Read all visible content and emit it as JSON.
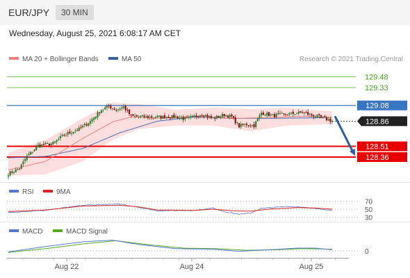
{
  "header": {
    "pair": "EUR/JPY",
    "timeframe": "30 MIN",
    "datetime": "Wednesday, August 25, 2021 6:08:17 AM CET"
  },
  "legend": {
    "ma20": "MA 20 + Bollinger Bands",
    "ma50": "MA 50",
    "credit": "Research © 2021 Trading Central",
    "rsi": "RSI",
    "rsi_ma": "9MA",
    "macd": "MACD",
    "macd_signal": "MACD Signal"
  },
  "colors": {
    "up": "#2e7d32",
    "down": "#8e1010",
    "ma20": "#f08080",
    "bollinger": "#fbd3d3",
    "ma50": "#4a6fb5",
    "resistance": "#7cbf5a",
    "pivot": "#3a75c4",
    "support": "#e60000",
    "arrow": "#2a5da8",
    "rsi": "#5577cc",
    "rsi_ma": "#dd2222",
    "macd": "#5577cc",
    "macd_signal": "#55aa22"
  },
  "chart_data": [
    {
      "type": "candlestick",
      "title": "EUR/JPY",
      "x_ticks": [
        "Aug 22",
        "Aug 24",
        "Aug 25"
      ],
      "ylim": [
        128.05,
        129.63
      ],
      "levels": [
        {
          "label": "129.48",
          "value": 129.48,
          "kind": "resistance"
        },
        {
          "label": "129.33",
          "value": 129.33,
          "kind": "resistance"
        },
        {
          "label": "129.08",
          "value": 129.08,
          "kind": "pivot"
        },
        {
          "label": "128.86",
          "value": 128.86,
          "kind": "last"
        },
        {
          "label": "128.51",
          "value": 128.51,
          "kind": "support"
        },
        {
          "label": "128.36",
          "value": 128.36,
          "kind": "support"
        }
      ],
      "forecast": {
        "from": 128.93,
        "to": 128.38
      },
      "close_anchors": [
        [
          0,
          128.13
        ],
        [
          6,
          128.2
        ],
        [
          10,
          128.37
        ],
        [
          16,
          128.52
        ],
        [
          24,
          128.55
        ],
        [
          30,
          128.67
        ],
        [
          38,
          128.75
        ],
        [
          44,
          128.86
        ],
        [
          50,
          129.02
        ],
        [
          54,
          129.07
        ],
        [
          58,
          129.02
        ],
        [
          62,
          129.06
        ],
        [
          66,
          128.93
        ],
        [
          74,
          128.92
        ],
        [
          82,
          128.92
        ],
        [
          90,
          128.92
        ],
        [
          96,
          128.89
        ],
        [
          104,
          128.96
        ],
        [
          110,
          128.9
        ],
        [
          116,
          128.95
        ],
        [
          120,
          128.92
        ],
        [
          124,
          128.79
        ],
        [
          128,
          128.82
        ],
        [
          132,
          128.8
        ],
        [
          136,
          128.98
        ],
        [
          142,
          128.94
        ],
        [
          150,
          128.96
        ],
        [
          158,
          128.98
        ],
        [
          164,
          128.94
        ],
        [
          170,
          128.9
        ],
        [
          174,
          128.86
        ]
      ],
      "ma20_anchors": [
        [
          0,
          128.18
        ],
        [
          20,
          128.3
        ],
        [
          40,
          128.62
        ],
        [
          56,
          128.85
        ],
        [
          66,
          128.92
        ],
        [
          80,
          128.9
        ],
        [
          100,
          128.93
        ],
        [
          120,
          128.9
        ],
        [
          140,
          128.91
        ],
        [
          160,
          128.93
        ],
        [
          174,
          128.91
        ]
      ],
      "ma50_anchors": [
        [
          0,
          128.35
        ],
        [
          20,
          128.37
        ],
        [
          40,
          128.48
        ],
        [
          60,
          128.7
        ],
        [
          80,
          128.86
        ],
        [
          100,
          128.92
        ],
        [
          120,
          128.9
        ],
        [
          140,
          128.9
        ],
        [
          174,
          128.91
        ]
      ],
      "bb_upper_anchors": [
        [
          0,
          128.42
        ],
        [
          20,
          128.6
        ],
        [
          40,
          128.9
        ],
        [
          56,
          129.12
        ],
        [
          70,
          129.1
        ],
        [
          90,
          129.02
        ],
        [
          110,
          129.05
        ],
        [
          130,
          129.03
        ],
        [
          150,
          129.05
        ],
        [
          174,
          129.0
        ]
      ],
      "bb_lower_anchors": [
        [
          0,
          128.1
        ],
        [
          20,
          128.12
        ],
        [
          40,
          128.3
        ],
        [
          56,
          128.6
        ],
        [
          70,
          128.75
        ],
        [
          90,
          128.8
        ],
        [
          110,
          128.8
        ],
        [
          130,
          128.72
        ],
        [
          150,
          128.8
        ],
        [
          174,
          128.82
        ]
      ]
    },
    {
      "type": "line",
      "title": "RSI",
      "ylim": [
        20,
        80
      ],
      "ticks": [
        {
          "label": "70",
          "value": 70
        },
        {
          "label": "50",
          "value": 50
        },
        {
          "label": "30",
          "value": 30
        }
      ],
      "rsi_anchors": [
        [
          0,
          42
        ],
        [
          20,
          47
        ],
        [
          40,
          60
        ],
        [
          60,
          63
        ],
        [
          70,
          55
        ],
        [
          80,
          46
        ],
        [
          100,
          47
        ],
        [
          110,
          53
        ],
        [
          116,
          44
        ],
        [
          124,
          37
        ],
        [
          130,
          40
        ],
        [
          136,
          52
        ],
        [
          150,
          57
        ],
        [
          160,
          55
        ],
        [
          170,
          48
        ],
        [
          174,
          47
        ]
      ],
      "rsi_ma_anchors": [
        [
          0,
          44
        ],
        [
          20,
          48
        ],
        [
          40,
          58
        ],
        [
          60,
          60
        ],
        [
          70,
          56
        ],
        [
          80,
          48
        ],
        [
          100,
          47
        ],
        [
          110,
          50
        ],
        [
          120,
          46
        ],
        [
          130,
          45
        ],
        [
          140,
          50
        ],
        [
          155,
          54
        ],
        [
          165,
          53
        ],
        [
          174,
          50
        ]
      ]
    },
    {
      "type": "line",
      "title": "MACD",
      "ylim": [
        -0.12,
        0.3
      ],
      "ticks": [
        {
          "label": "0",
          "value": 0
        }
      ],
      "macd_anchors": [
        [
          0,
          -0.02
        ],
        [
          20,
          0.08
        ],
        [
          40,
          0.17
        ],
        [
          56,
          0.2
        ],
        [
          70,
          0.12
        ],
        [
          90,
          0.04
        ],
        [
          110,
          0.03
        ],
        [
          124,
          -0.01
        ],
        [
          140,
          0.02
        ],
        [
          155,
          0.05
        ],
        [
          165,
          0.05
        ],
        [
          174,
          0.02
        ]
      ],
      "macd_signal_anchors": [
        [
          0,
          -0.03
        ],
        [
          20,
          0.04
        ],
        [
          40,
          0.13
        ],
        [
          58,
          0.19
        ],
        [
          74,
          0.12
        ],
        [
          94,
          0.05
        ],
        [
          112,
          0.04
        ],
        [
          128,
          0.01
        ],
        [
          144,
          0.02
        ],
        [
          158,
          0.04
        ],
        [
          174,
          0.03
        ]
      ]
    }
  ]
}
